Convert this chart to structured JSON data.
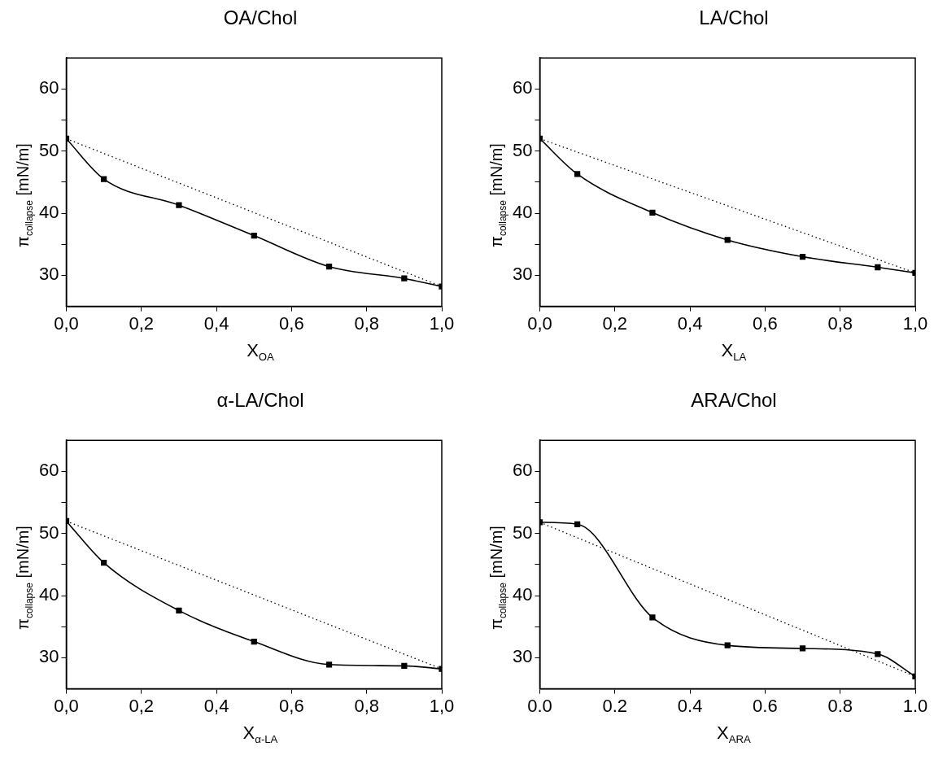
{
  "chart_data": [
    {
      "type": "line",
      "title": "OA/Chol",
      "xlabel": "X$_{OA}$",
      "ylabel": "π$_{collapse}$ [mN/m]",
      "xlim": [
        0,
        1
      ],
      "ylim": [
        25,
        65
      ],
      "xticks": [
        {
          "value": 0,
          "label": "0,0"
        },
        {
          "value": 0.2,
          "label": "0,2"
        },
        {
          "value": 0.4,
          "label": "0,4"
        },
        {
          "value": 0.6,
          "label": "0,6"
        },
        {
          "value": 0.8,
          "label": "0,8"
        },
        {
          "value": 1,
          "label": "1,0"
        }
      ],
      "yticks": [
        30,
        {
          "value": 35,
          "label": null
        },
        40,
        {
          "value": 45,
          "label": null
        },
        50,
        {
          "value": 55,
          "label": null
        },
        60
      ],
      "grid": false,
      "legend": false,
      "series": [
        {
          "color": "#000000",
          "marker": "square",
          "line_style": "solid",
          "x": [
            0,
            0.1,
            0.3,
            0.5,
            0.7,
            0.9,
            1
          ],
          "values": [
            52,
            45.5,
            41.3,
            36.4,
            31.4,
            29.5,
            28.2
          ]
        },
        {
          "color": "#000000",
          "marker": "none",
          "line_style": "dotted",
          "x": [
            0,
            1
          ],
          "values": [
            52,
            28.2
          ]
        }
      ]
    },
    {
      "type": "line",
      "title": "LA/Chol",
      "xlabel": "X$_{LA}$",
      "ylabel": "π$_{collapse}$ [mN/m]",
      "xlim": [
        0,
        1
      ],
      "ylim": [
        25,
        65
      ],
      "xticks": [
        {
          "value": 0,
          "label": "0,0"
        },
        {
          "value": 0.2,
          "label": "0,2"
        },
        {
          "value": 0.4,
          "label": "0,4"
        },
        {
          "value": 0.6,
          "label": "0,6"
        },
        {
          "value": 0.8,
          "label": "0,8"
        },
        {
          "value": 1,
          "label": "1,0"
        }
      ],
      "yticks": [
        30,
        {
          "value": 35,
          "label": null
        },
        40,
        {
          "value": 45,
          "label": null
        },
        50,
        {
          "value": 55,
          "label": null
        },
        60
      ],
      "grid": false,
      "legend": false,
      "series": [
        {
          "color": "#000000",
          "marker": "square",
          "line_style": "solid",
          "x": [
            0,
            0.1,
            0.3,
            0.5,
            0.7,
            0.9,
            1
          ],
          "values": [
            52,
            46.3,
            40.1,
            35.7,
            33.0,
            31.3,
            30.4
          ]
        },
        {
          "color": "#000000",
          "marker": "none",
          "line_style": "dotted",
          "x": [
            0,
            1
          ],
          "values": [
            52,
            30.4
          ]
        }
      ]
    },
    {
      "type": "line",
      "title": "α-LA/Chol",
      "xlabel": "X$_{α-LA}$",
      "ylabel": "π$_{collapse}$ [mN/m]",
      "xlim": [
        0,
        1
      ],
      "ylim": [
        25,
        65
      ],
      "xticks": [
        {
          "value": 0,
          "label": "0,0"
        },
        {
          "value": 0.2,
          "label": "0,2"
        },
        {
          "value": 0.4,
          "label": "0,4"
        },
        {
          "value": 0.6,
          "label": "0,6"
        },
        {
          "value": 0.8,
          "label": "0,8"
        },
        {
          "value": 1,
          "label": "1,0"
        }
      ],
      "yticks": [
        30,
        {
          "value": 35,
          "label": null
        },
        40,
        {
          "value": 45,
          "label": null
        },
        50,
        {
          "value": 55,
          "label": null
        },
        60
      ],
      "grid": false,
      "legend": false,
      "series": [
        {
          "color": "#000000",
          "marker": "square",
          "line_style": "solid",
          "x": [
            0,
            0.1,
            0.3,
            0.5,
            0.7,
            0.9,
            1
          ],
          "values": [
            52,
            45.3,
            37.6,
            32.6,
            28.9,
            28.7,
            28.2
          ]
        },
        {
          "color": "#000000",
          "marker": "none",
          "line_style": "dotted",
          "x": [
            0,
            1
          ],
          "values": [
            52,
            28.2
          ]
        }
      ]
    },
    {
      "type": "line",
      "title": "ARA/Chol",
      "xlabel": "X$_{ARA}$",
      "ylabel": "π$_{collapse}$ [mN/m]",
      "xlim": [
        0,
        1
      ],
      "ylim": [
        25,
        65
      ],
      "xticks": [
        {
          "value": 0,
          "label": "0.0"
        },
        {
          "value": 0.2,
          "label": "0.2"
        },
        {
          "value": 0.4,
          "label": "0.4"
        },
        {
          "value": 0.6,
          "label": "0.6"
        },
        {
          "value": 0.8,
          "label": "0.8"
        },
        {
          "value": 1,
          "label": "1.0"
        }
      ],
      "yticks": [
        30,
        {
          "value": 35,
          "label": null
        },
        40,
        {
          "value": 45,
          "label": null
        },
        50,
        {
          "value": 55,
          "label": null
        },
        60
      ],
      "grid": false,
      "legend": false,
      "series": [
        {
          "color": "#000000",
          "marker": "square",
          "line_style": "solid",
          "x": [
            0,
            0.1,
            0.3,
            0.5,
            0.7,
            0.9,
            1
          ],
          "values": [
            51.8,
            51.5,
            36.5,
            32.0,
            31.5,
            30.6,
            27.0
          ]
        },
        {
          "color": "#000000",
          "marker": "none",
          "line_style": "dotted",
          "x": [
            0,
            1
          ],
          "values": [
            51.8,
            27.0
          ]
        }
      ]
    }
  ]
}
